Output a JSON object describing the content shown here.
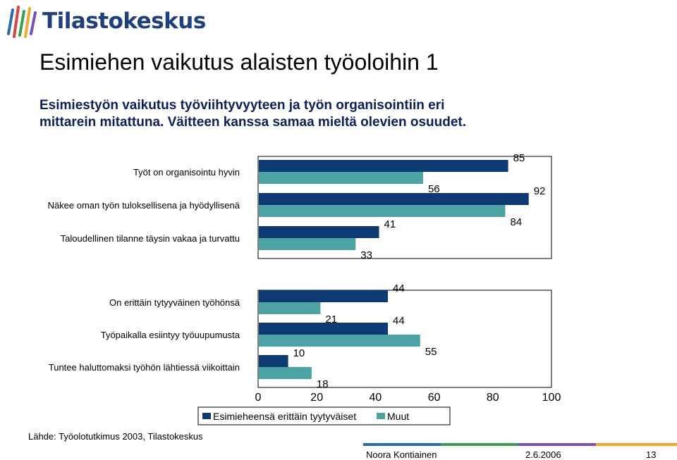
{
  "header": {
    "logo_text": "Tilastokeskus",
    "title": "Esimiehen vaikutus alaisten työoloihin 1",
    "subtitle_lines": [
      "Esimiestyön vaikutus työviihtyvyyteen ja työn organisointiin eri",
      "mittarein mitattuna. Väitteen kanssa samaa mieltä olevien osuudet."
    ]
  },
  "colors": {
    "series1": "#0d3a72",
    "series2": "#4ba3a3",
    "title_blue": "#0b1f5a",
    "logo_blue": "#1f3f7d"
  },
  "chart_data": {
    "type": "bar",
    "orientation": "horizontal",
    "categories": [
      "Työt on organisointu hyvin",
      "Näkee oman työn tuloksellisena ja hyödyllisenä",
      "Taloudellinen tilanne täysin vakaa ja turvattu",
      "On erittäin tytyyväinen työhönsä",
      "Työpaikalla esiintyy työuupumusta",
      "Tuntee haluttomaksi työhön lähtiessä viikoittain"
    ],
    "series": [
      {
        "name": "Esimieheensä erittäin tyytyväiset",
        "values": [
          85,
          92,
          41,
          44,
          44,
          10
        ]
      },
      {
        "name": "Muut",
        "values": [
          56,
          84,
          33,
          21,
          55,
          18
        ]
      }
    ],
    "xlim": [
      0,
      100
    ],
    "xticks": [
      "0",
      "20",
      "40",
      "60",
      "80",
      "100"
    ],
    "grid": false,
    "legend": "bottom"
  },
  "footer": {
    "source": "Lähde: Työolotutkimus 2003, Tilastokeskus",
    "author": "Noora Kontiainen",
    "date": "2.6.2006",
    "page": "13"
  }
}
